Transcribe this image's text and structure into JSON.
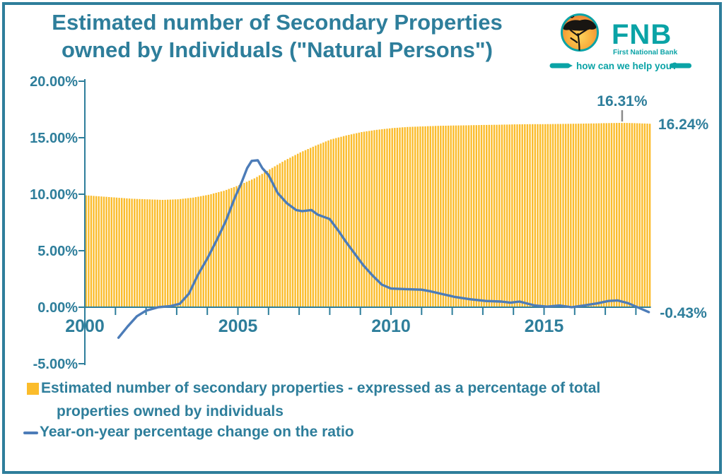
{
  "header": {
    "title_line1": "Estimated number of Secondary Properties",
    "title_line2": "owned by Individuals (\"Natural Persons\")"
  },
  "logo": {
    "brand": "FNB",
    "subtitle": "First National Bank",
    "tagline": "how can we help you?"
  },
  "colors": {
    "teal_text": "#2E7E9B",
    "fnb_teal": "#0AA3A6",
    "bar_gold": "#FBBC2B",
    "line_blue": "#4C7CB8",
    "leader_gray": "#8C8C8C",
    "tree_black": "#181512"
  },
  "chart_data": {
    "type": "bar+line combo, monthly series",
    "title": "Estimated number of Secondary Properties owned by Individuals (\"Natural Persons\")",
    "xlabel": "",
    "ylabel": "",
    "x_axis": {
      "range_years": [
        2000,
        2018.6
      ],
      "tick_years": [
        2000,
        2001,
        2002,
        2003,
        2004,
        2005,
        2006,
        2007,
        2008,
        2009,
        2010,
        2011,
        2012,
        2013,
        2014,
        2015,
        2016,
        2017,
        2018
      ],
      "label_years": [
        2000,
        2005,
        2010,
        2015
      ],
      "labels": [
        "2000",
        "2005",
        "2010",
        "2015"
      ]
    },
    "y_axis": {
      "range_pct": [
        -5,
        20
      ],
      "tick_values": [
        20,
        15,
        10,
        5,
        0,
        -5
      ],
      "tick_labels": [
        "20.00%",
        "15.00%",
        "10.00%",
        "5.00%",
        "0.00%",
        "-5.00%"
      ],
      "grid": false
    },
    "series": [
      {
        "name": "Estimated number of secondary properties - expressed as a percentage of total properties owned by individuals",
        "type": "bar",
        "unit": "%",
        "anchors_year": [
          2000,
          2000.5,
          2001,
          2001.5,
          2002,
          2002.5,
          2003,
          2003.5,
          2004,
          2004.5,
          2005,
          2005.5,
          2006,
          2006.5,
          2007,
          2007.5,
          2008,
          2008.5,
          2009,
          2009.5,
          2010,
          2010.5,
          2011,
          2011.5,
          2012,
          2012.5,
          2013,
          2013.5,
          2014,
          2014.5,
          2015,
          2015.5,
          2016,
          2016.5,
          2017,
          2017.4,
          2017.8,
          2018,
          2018.42
        ],
        "anchors_value": [
          9.9,
          9.8,
          9.7,
          9.6,
          9.55,
          9.5,
          9.55,
          9.7,
          9.95,
          10.3,
          10.8,
          11.4,
          12.2,
          13.0,
          13.7,
          14.3,
          14.85,
          15.2,
          15.5,
          15.7,
          15.85,
          15.95,
          16.0,
          16.05,
          16.08,
          16.1,
          16.13,
          16.15,
          16.18,
          16.2,
          16.2,
          16.22,
          16.24,
          16.26,
          16.29,
          16.31,
          16.3,
          16.28,
          16.24
        ]
      },
      {
        "name": "Year-on-year percentage change on the ratio",
        "type": "line",
        "unit": "%",
        "points_year": [
          2001.1,
          2001.4,
          2001.7,
          2002.0,
          2002.4,
          2002.8,
          2003.1,
          2003.4,
          2003.7,
          2004.0,
          2004.3,
          2004.6,
          2004.9,
          2005.1,
          2005.3,
          2005.45,
          2005.65,
          2005.8,
          2006.0,
          2006.3,
          2006.6,
          2006.9,
          2007.1,
          2007.4,
          2007.6,
          2008.0,
          2008.3,
          2008.5,
          2008.8,
          2009.1,
          2009.4,
          2009.7,
          2010.0,
          2010.5,
          2011.0,
          2011.3,
          2011.7,
          2012.1,
          2012.6,
          2013.1,
          2013.6,
          2013.9,
          2014.2,
          2014.7,
          2015.1,
          2015.5,
          2015.9,
          2016.3,
          2016.75,
          2017.1,
          2017.4,
          2017.75,
          2018.05,
          2018.42
        ],
        "points_value": [
          -2.7,
          -1.7,
          -0.8,
          -0.3,
          0.0,
          0.1,
          0.3,
          1.2,
          2.9,
          4.3,
          5.9,
          7.6,
          9.7,
          10.9,
          12.3,
          12.95,
          13.0,
          12.3,
          11.7,
          10.1,
          9.2,
          8.6,
          8.5,
          8.6,
          8.2,
          7.8,
          6.7,
          5.9,
          4.8,
          3.7,
          2.8,
          2.0,
          1.65,
          1.6,
          1.55,
          1.4,
          1.15,
          0.9,
          0.7,
          0.55,
          0.5,
          0.4,
          0.5,
          0.15,
          0.05,
          0.15,
          0.0,
          0.15,
          0.35,
          0.55,
          0.6,
          0.35,
          0.0,
          -0.43
        ]
      }
    ],
    "annotations": [
      {
        "text": "16.31%",
        "year": 2017.55,
        "value": 16.31,
        "placement": "above"
      },
      {
        "text": "16.24%",
        "year": 2019.55,
        "value": 16.24,
        "placement": "right"
      },
      {
        "text": "-0.43%",
        "year": 2019.55,
        "value": -0.43,
        "placement": "right"
      }
    ],
    "legend_position": "bottom-left"
  },
  "legend": [
    {
      "swatch": "bar",
      "label_line1": "Estimated number of secondary properties - expressed as a percentage of total",
      "label_line2": "properties owned by individuals"
    },
    {
      "swatch": "line",
      "label": "Year-on-year percentage change on the ratio"
    }
  ]
}
